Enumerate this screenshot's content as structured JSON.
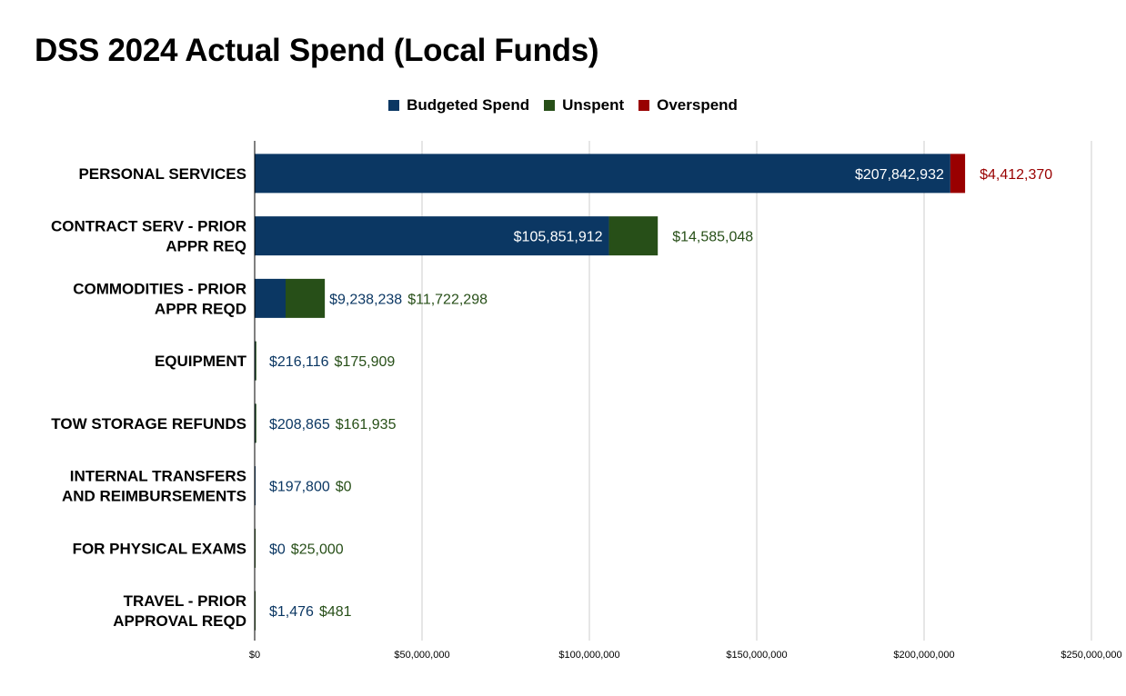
{
  "chart_data": {
    "type": "bar",
    "orientation": "horizontal",
    "stacked": true,
    "title": "DSS 2024 Actual Spend (Local Funds)",
    "xlabel": "",
    "ylabel": "",
    "xlim": [
      0,
      250000000
    ],
    "grid": true,
    "legend_position": "top",
    "categories": [
      [
        "PERSONAL SERVICES"
      ],
      [
        "CONTRACT SERV - PRIOR",
        "APPR REQ"
      ],
      [
        "COMMODITIES - PRIOR",
        "APPR REQD"
      ],
      [
        "EQUIPMENT"
      ],
      [
        "TOW STORAGE REFUNDS"
      ],
      [
        "INTERNAL TRANSFERS",
        "AND REIMBURSEMENTS"
      ],
      [
        "FOR PHYSICAL EXAMS"
      ],
      [
        "TRAVEL - PRIOR",
        "APPROVAL REQD"
      ]
    ],
    "series": [
      {
        "name": "Budgeted Spend",
        "color": "#0b3763",
        "values": [
          207842932,
          105851912,
          9238238,
          216116,
          208865,
          197800,
          0,
          1476
        ],
        "labels": [
          "$207,842,932",
          "$105,851,912",
          "$9,238,238",
          "$216,116",
          "$208,865",
          "$197,800",
          "$0",
          "$1,476"
        ]
      },
      {
        "name": "Unspent",
        "color": "#274f18",
        "values": [
          0,
          14585048,
          11722298,
          175909,
          161935,
          0,
          25000,
          481
        ],
        "labels": [
          "",
          "$14,585,048",
          "$11,722,298",
          "$175,909",
          "$161,935",
          "$0",
          "$25,000",
          "$481"
        ]
      },
      {
        "name": "Overspend",
        "color": "#990000",
        "values": [
          4412370,
          0,
          0,
          0,
          0,
          0,
          0,
          0
        ],
        "labels": [
          "$4,412,370",
          "",
          "",
          "",
          "",
          "",
          "",
          ""
        ]
      }
    ],
    "x_ticks": [
      0,
      50000000,
      100000000,
      150000000,
      200000000,
      250000000
    ],
    "x_tick_labels": [
      "$0",
      "$50,000,000",
      "$100,000,000",
      "$150,000,000",
      "$200,000,000",
      "$250,000,000"
    ]
  }
}
